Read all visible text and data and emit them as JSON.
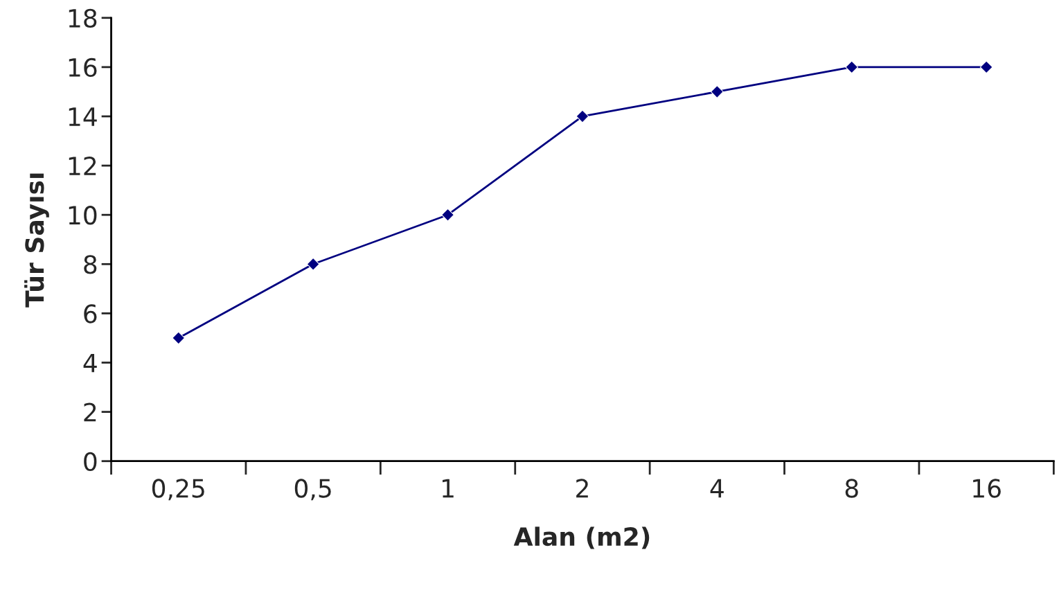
{
  "chart_data": {
    "type": "line",
    "xlabel": "Alan (m2)",
    "ylabel": "Tür Sayısı",
    "categories": [
      "0,25",
      "0,5",
      "1",
      "2",
      "4",
      "8",
      "16"
    ],
    "series": [
      {
        "color": "#000080",
        "values": [
          5,
          8,
          10,
          14,
          15,
          16,
          16
        ]
      }
    ],
    "ylim": [
      0,
      18
    ],
    "yticks": [
      0,
      2,
      4,
      6,
      8,
      10,
      12,
      14,
      16,
      18
    ],
    "marker": "diamond",
    "line_style": "solid",
    "grid": false,
    "legend": false
  }
}
